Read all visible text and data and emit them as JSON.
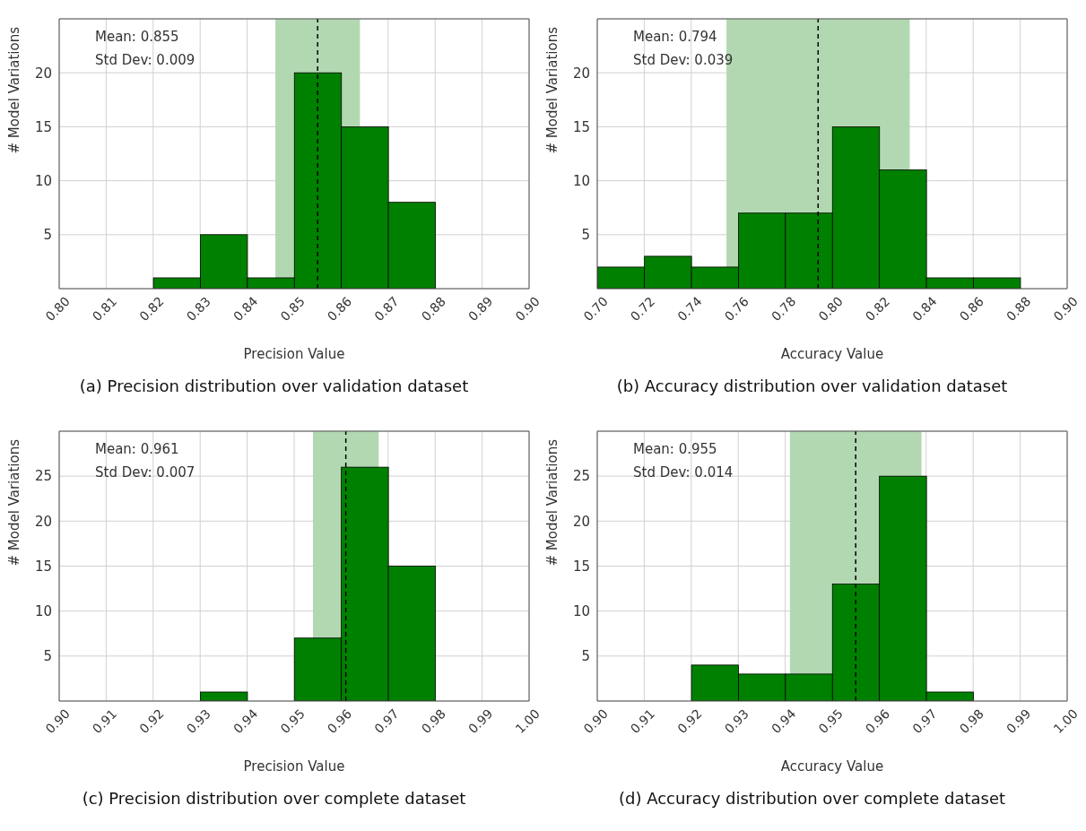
{
  "chart_data": [
    {
      "type": "histogram",
      "title": "(a) Precision distribution over validation dataset",
      "xlabel": "Precision Value",
      "ylabel": "# Model Variations",
      "bins": [
        0.82,
        0.83,
        0.84,
        0.85,
        0.86,
        0.87,
        0.88
      ],
      "values": [
        1,
        5,
        1,
        20,
        15,
        8
      ],
      "color": "#008000",
      "xlim": [
        0.8,
        0.9
      ],
      "xticks": [
        {
          "value": 0.8,
          "label": "0.80"
        },
        {
          "value": 0.81,
          "label": "0.81"
        },
        {
          "value": 0.82,
          "label": "0.82"
        },
        {
          "value": 0.83,
          "label": "0.83"
        },
        {
          "value": 0.84,
          "label": "0.84"
        },
        {
          "value": 0.85,
          "label": "0.85"
        },
        {
          "value": 0.86,
          "label": "0.86"
        },
        {
          "value": 0.87,
          "label": "0.87"
        },
        {
          "value": 0.88,
          "label": "0.88"
        },
        {
          "value": 0.89,
          "label": "0.89"
        },
        {
          "value": 0.9,
          "label": "0.90"
        }
      ],
      "ylim": [
        0,
        25
      ],
      "yticks": [
        5,
        10,
        15,
        20
      ],
      "grid": true,
      "ref_lines": [
        {
          "axis": "x",
          "value": 0.855,
          "color": "#000000",
          "line_style": "dashed"
        }
      ],
      "bands": [
        {
          "axis": "x",
          "from": 0.846,
          "to": 0.864,
          "color": "#b2d8b2"
        }
      ],
      "annotations": [
        "Mean: 0.855",
        "Std Dev: 0.009"
      ]
    },
    {
      "type": "histogram",
      "title": "(b) Accuracy distribution over validation dataset",
      "xlabel": "Accuracy Value",
      "ylabel": "# Model Variations",
      "bins": [
        0.7,
        0.72,
        0.74,
        0.76,
        0.78,
        0.8,
        0.82,
        0.84,
        0.86,
        0.88
      ],
      "values": [
        2,
        3,
        2,
        7,
        7,
        15,
        11,
        1,
        1
      ],
      "color": "#008000",
      "xlim": [
        0.7,
        0.9
      ],
      "xticks": [
        {
          "value": 0.7,
          "label": "0.70"
        },
        {
          "value": 0.72,
          "label": "0.72"
        },
        {
          "value": 0.74,
          "label": "0.74"
        },
        {
          "value": 0.76,
          "label": "0.76"
        },
        {
          "value": 0.78,
          "label": "0.78"
        },
        {
          "value": 0.8,
          "label": "0.80"
        },
        {
          "value": 0.82,
          "label": "0.82"
        },
        {
          "value": 0.84,
          "label": "0.84"
        },
        {
          "value": 0.86,
          "label": "0.86"
        },
        {
          "value": 0.88,
          "label": "0.88"
        },
        {
          "value": 0.9,
          "label": "0.90"
        }
      ],
      "ylim": [
        0,
        25
      ],
      "yticks": [
        5,
        10,
        15,
        20
      ],
      "grid": true,
      "ref_lines": [
        {
          "axis": "x",
          "value": 0.794,
          "color": "#000000",
          "line_style": "dashed"
        }
      ],
      "bands": [
        {
          "axis": "x",
          "from": 0.755,
          "to": 0.833,
          "color": "#b2d8b2"
        }
      ],
      "annotations": [
        "Mean: 0.794",
        "Std Dev: 0.039"
      ]
    },
    {
      "type": "histogram",
      "title": "(c) Precision distribution over complete dataset",
      "xlabel": "Precision Value",
      "ylabel": "# Model Variations",
      "bins": [
        0.93,
        0.94,
        0.95,
        0.96,
        0.97,
        0.98
      ],
      "values": [
        1,
        0,
        7,
        26,
        15
      ],
      "color": "#008000",
      "xlim": [
        0.9,
        1.0
      ],
      "xticks": [
        {
          "value": 0.9,
          "label": "0.90"
        },
        {
          "value": 0.91,
          "label": "0.91"
        },
        {
          "value": 0.92,
          "label": "0.92"
        },
        {
          "value": 0.93,
          "label": "0.93"
        },
        {
          "value": 0.94,
          "label": "0.94"
        },
        {
          "value": 0.95,
          "label": "0.95"
        },
        {
          "value": 0.96,
          "label": "0.96"
        },
        {
          "value": 0.97,
          "label": "0.97"
        },
        {
          "value": 0.98,
          "label": "0.98"
        },
        {
          "value": 0.99,
          "label": "0.99"
        },
        {
          "value": 1.0,
          "label": "1.00"
        }
      ],
      "ylim": [
        0,
        30
      ],
      "yticks": [
        5,
        10,
        15,
        20,
        25
      ],
      "grid": true,
      "ref_lines": [
        {
          "axis": "x",
          "value": 0.961,
          "color": "#000000",
          "line_style": "dashed"
        }
      ],
      "bands": [
        {
          "axis": "x",
          "from": 0.954,
          "to": 0.968,
          "color": "#b2d8b2"
        }
      ],
      "annotations": [
        "Mean: 0.961",
        "Std Dev: 0.007"
      ]
    },
    {
      "type": "histogram",
      "title": "(d) Accuracy distribution over complete dataset",
      "xlabel": "Accuracy Value",
      "ylabel": "# Model Variations",
      "bins": [
        0.92,
        0.93,
        0.94,
        0.95,
        0.96,
        0.97,
        0.98
      ],
      "values": [
        4,
        3,
        3,
        13,
        25,
        1
      ],
      "color": "#008000",
      "xlim": [
        0.9,
        1.0
      ],
      "xticks": [
        {
          "value": 0.9,
          "label": "0.90"
        },
        {
          "value": 0.91,
          "label": "0.91"
        },
        {
          "value": 0.92,
          "label": "0.92"
        },
        {
          "value": 0.93,
          "label": "0.93"
        },
        {
          "value": 0.94,
          "label": "0.94"
        },
        {
          "value": 0.95,
          "label": "0.95"
        },
        {
          "value": 0.96,
          "label": "0.96"
        },
        {
          "value": 0.97,
          "label": "0.97"
        },
        {
          "value": 0.98,
          "label": "0.98"
        },
        {
          "value": 0.99,
          "label": "0.99"
        },
        {
          "value": 1.0,
          "label": "1.00"
        }
      ],
      "ylim": [
        0,
        30
      ],
      "yticks": [
        5,
        10,
        15,
        20,
        25
      ],
      "grid": true,
      "ref_lines": [
        {
          "axis": "x",
          "value": 0.955,
          "color": "#000000",
          "line_style": "dashed"
        }
      ],
      "bands": [
        {
          "axis": "x",
          "from": 0.941,
          "to": 0.969,
          "color": "#b2d8b2"
        }
      ],
      "annotations": [
        "Mean: 0.955",
        "Std Dev: 0.014"
      ]
    }
  ]
}
